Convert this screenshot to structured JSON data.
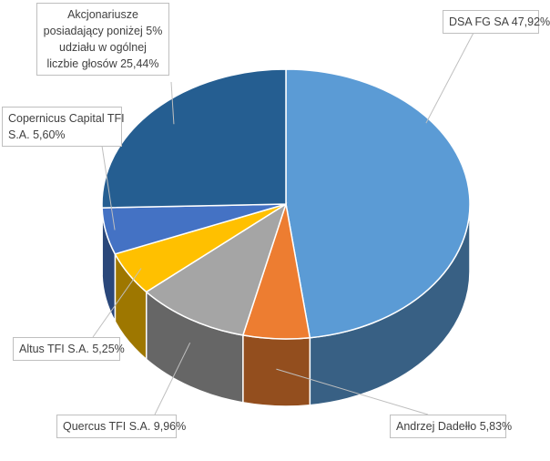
{
  "chart_data": {
    "type": "pie",
    "three_d": true,
    "title": "",
    "legend": "none",
    "slices": [
      {
        "label_lines": [
          "DSA FG SA 47,92%"
        ],
        "value": 47.92,
        "color": "#5b9bd5"
      },
      {
        "label_lines": [
          "Andrzej Dadełło 5,83%"
        ],
        "value": 5.83,
        "color": "#ed7d31"
      },
      {
        "label_lines": [
          "Quercus TFI S.A. 9,96%"
        ],
        "value": 9.96,
        "color": "#a5a5a5"
      },
      {
        "label_lines": [
          "Altus TFI S.A. 5,25%"
        ],
        "value": 5.25,
        "color": "#ffc000"
      },
      {
        "label_lines": [
          "Copernicus Capital TFI",
          "S.A. 5,60%"
        ],
        "value": 5.6,
        "color": "#4472c4"
      },
      {
        "label_lines": [
          "Akcjonariusze",
          "posiadający poniżej 5%",
          "udziału w ogólnej",
          "liczbie głosów 25,44%"
        ],
        "value": 25.44,
        "color": "#255e91"
      }
    ]
  }
}
